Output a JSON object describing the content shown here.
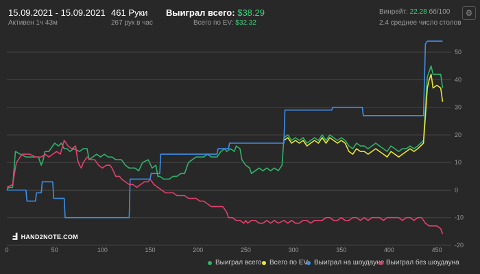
{
  "header": {
    "date_range": "15.09.2021 - 15.09.2021",
    "active": "Активен 1ч 43м",
    "hands": "461 Руки",
    "hands_per_hour": "267 рук в час",
    "won_label": "Выиграл всего:",
    "won_value": "$38.29",
    "ev_label": "Всего по EV:",
    "ev_value": "$32.32",
    "winrate_label": "Винрейт:",
    "winrate_value": "22.28",
    "winrate_unit": "бб/100",
    "avg_tables": "2.4 среднее число столов"
  },
  "settings_icon": "gear-icon",
  "logo": {
    "text": "HAND2NOTE.COM"
  },
  "colors": {
    "background": "#282828",
    "won": "#2fb36a",
    "ev": "#e9e63a",
    "showdown": "#3f8ee8",
    "non_showdown": "#e3406f",
    "grid": "#444444",
    "zero_line": "#5a5a5a",
    "accent_text": "#3bd47a"
  },
  "chart_data": {
    "type": "line",
    "xlim": [
      0,
      465
    ],
    "ylim": [
      -20,
      57
    ],
    "xticks": [
      "0",
      "50",
      "100",
      "150",
      "200",
      "250",
      "300",
      "350",
      "400",
      "450"
    ],
    "yticks": [
      "-20",
      "-10",
      "0",
      "10",
      "20",
      "30",
      "40",
      "50"
    ],
    "grid": true,
    "legend_position": "bottom-right",
    "series": [
      {
        "name": "Выиграл всего",
        "color": "#2fb36a",
        "points": [
          [
            0,
            0
          ],
          [
            2,
            1
          ],
          [
            6,
            1
          ],
          [
            9,
            14
          ],
          [
            14,
            13
          ],
          [
            20,
            12
          ],
          [
            26,
            12
          ],
          [
            33,
            12
          ],
          [
            36,
            9
          ],
          [
            38,
            11
          ],
          [
            40,
            14
          ],
          [
            44,
            14
          ],
          [
            46,
            15
          ],
          [
            48,
            16
          ],
          [
            50,
            17
          ],
          [
            54,
            16
          ],
          [
            57,
            17
          ],
          [
            60,
            15
          ],
          [
            63,
            15
          ],
          [
            66,
            14
          ],
          [
            70,
            15
          ],
          [
            76,
            14
          ],
          [
            80,
            15
          ],
          [
            84,
            15
          ],
          [
            86,
            11
          ],
          [
            90,
            12
          ],
          [
            94,
            13
          ],
          [
            98,
            12
          ],
          [
            102,
            13
          ],
          [
            106,
            12
          ],
          [
            110,
            12
          ],
          [
            114,
            11
          ],
          [
            120,
            11
          ],
          [
            124,
            9
          ],
          [
            128,
            8
          ],
          [
            130,
            8
          ],
          [
            134,
            8
          ],
          [
            138,
            7
          ],
          [
            142,
            10
          ],
          [
            148,
            11
          ],
          [
            152,
            8
          ],
          [
            156,
            9
          ],
          [
            158,
            5
          ],
          [
            160,
            5
          ],
          [
            164,
            4
          ],
          [
            170,
            4
          ],
          [
            174,
            5
          ],
          [
            178,
            5
          ],
          [
            182,
            6
          ],
          [
            186,
            6
          ],
          [
            188,
            8
          ],
          [
            190,
            10
          ],
          [
            194,
            11
          ],
          [
            198,
            12
          ],
          [
            202,
            12
          ],
          [
            206,
            12
          ],
          [
            210,
            13
          ],
          [
            214,
            12
          ],
          [
            220,
            12
          ],
          [
            224,
            14
          ],
          [
            228,
            15
          ],
          [
            230,
            14
          ],
          [
            234,
            15
          ],
          [
            238,
            14
          ],
          [
            240,
            16
          ],
          [
            244,
            15
          ],
          [
            246,
            11
          ],
          [
            248,
            10
          ],
          [
            250,
            9
          ],
          [
            254,
            8
          ],
          [
            256,
            6
          ],
          [
            260,
            7
          ],
          [
            264,
            8
          ],
          [
            268,
            7
          ],
          [
            272,
            8
          ],
          [
            276,
            7
          ],
          [
            280,
            8
          ],
          [
            284,
            7
          ],
          [
            288,
            9
          ],
          [
            290,
            19
          ],
          [
            294,
            20
          ],
          [
            298,
            18
          ],
          [
            302,
            19
          ],
          [
            306,
            18
          ],
          [
            310,
            19
          ],
          [
            314,
            17
          ],
          [
            318,
            18
          ],
          [
            322,
            19
          ],
          [
            326,
            18
          ],
          [
            330,
            20
          ],
          [
            334,
            18
          ],
          [
            338,
            20
          ],
          [
            342,
            19
          ],
          [
            346,
            18
          ],
          [
            350,
            19
          ],
          [
            354,
            18
          ],
          [
            358,
            16
          ],
          [
            362,
            15
          ],
          [
            366,
            17
          ],
          [
            370,
            16
          ],
          [
            374,
            16
          ],
          [
            378,
            15
          ],
          [
            382,
            16
          ],
          [
            386,
            17
          ],
          [
            390,
            16
          ],
          [
            394,
            15
          ],
          [
            398,
            14
          ],
          [
            402,
            16
          ],
          [
            406,
            15
          ],
          [
            410,
            14
          ],
          [
            414,
            15
          ],
          [
            418,
            15
          ],
          [
            422,
            16
          ],
          [
            426,
            15
          ],
          [
            430,
            16
          ],
          [
            436,
            18
          ],
          [
            440,
            41
          ],
          [
            442,
            43
          ],
          [
            444,
            45
          ],
          [
            446,
            42
          ],
          [
            450,
            42
          ],
          [
            454,
            42
          ],
          [
            456,
            37
          ]
        ]
      },
      {
        "name": "Всего по EV",
        "color": "#e9e63a",
        "points": [
          [
            290,
            18
          ],
          [
            294,
            19
          ],
          [
            298,
            17
          ],
          [
            302,
            18
          ],
          [
            306,
            17
          ],
          [
            310,
            18
          ],
          [
            314,
            16
          ],
          [
            318,
            17
          ],
          [
            322,
            18
          ],
          [
            326,
            17
          ],
          [
            330,
            19
          ],
          [
            334,
            17
          ],
          [
            338,
            19
          ],
          [
            342,
            18
          ],
          [
            346,
            17
          ],
          [
            350,
            18
          ],
          [
            354,
            17
          ],
          [
            358,
            14
          ],
          [
            362,
            13
          ],
          [
            366,
            15
          ],
          [
            370,
            14
          ],
          [
            374,
            14
          ],
          [
            378,
            13
          ],
          [
            382,
            14
          ],
          [
            386,
            15
          ],
          [
            390,
            14
          ],
          [
            394,
            13
          ],
          [
            398,
            12
          ],
          [
            402,
            14
          ],
          [
            406,
            13
          ],
          [
            410,
            12
          ],
          [
            414,
            13
          ],
          [
            418,
            14
          ],
          [
            422,
            15
          ],
          [
            426,
            14
          ],
          [
            430,
            15
          ],
          [
            436,
            17
          ],
          [
            440,
            37
          ],
          [
            442,
            40
          ],
          [
            444,
            42
          ],
          [
            446,
            37
          ],
          [
            450,
            38
          ],
          [
            454,
            37
          ],
          [
            456,
            32
          ]
        ]
      },
      {
        "name": "Выиграл на шоудауне",
        "color": "#3f8ee8",
        "points": [
          [
            0,
            0
          ],
          [
            20,
            0
          ],
          [
            21,
            -4
          ],
          [
            30,
            -4
          ],
          [
            31,
            -1
          ],
          [
            36,
            -1
          ],
          [
            37,
            3
          ],
          [
            48,
            3
          ],
          [
            49,
            -3
          ],
          [
            60,
            -3
          ],
          [
            61,
            -10
          ],
          [
            128,
            -10
          ],
          [
            129,
            4
          ],
          [
            150,
            4
          ],
          [
            151,
            6
          ],
          [
            160,
            6
          ],
          [
            161,
            13
          ],
          [
            220,
            13
          ],
          [
            221,
            15
          ],
          [
            232,
            15
          ],
          [
            233,
            17
          ],
          [
            290,
            17
          ],
          [
            291,
            29
          ],
          [
            300,
            29
          ],
          [
            301,
            29
          ],
          [
            340,
            29
          ],
          [
            341,
            30
          ],
          [
            372,
            30
          ],
          [
            373,
            27
          ],
          [
            436,
            27
          ],
          [
            438,
            53
          ],
          [
            440,
            54
          ],
          [
            456,
            54
          ]
        ]
      },
      {
        "name": "Выиграл без шоудауна",
        "color": "#e3406f",
        "points": [
          [
            0,
            1
          ],
          [
            6,
            2
          ],
          [
            10,
            10
          ],
          [
            16,
            13
          ],
          [
            24,
            13
          ],
          [
            30,
            12
          ],
          [
            36,
            12
          ],
          [
            40,
            13
          ],
          [
            44,
            12
          ],
          [
            48,
            13
          ],
          [
            52,
            14
          ],
          [
            56,
            13
          ],
          [
            60,
            18
          ],
          [
            62,
            17
          ],
          [
            64,
            16
          ],
          [
            68,
            15
          ],
          [
            72,
            16
          ],
          [
            74,
            11
          ],
          [
            76,
            9
          ],
          [
            78,
            8
          ],
          [
            80,
            10
          ],
          [
            84,
            12
          ],
          [
            88,
            11
          ],
          [
            92,
            11
          ],
          [
            96,
            9
          ],
          [
            100,
            8
          ],
          [
            104,
            9
          ],
          [
            108,
            9
          ],
          [
            110,
            8
          ],
          [
            114,
            5
          ],
          [
            118,
            5
          ],
          [
            120,
            4
          ],
          [
            124,
            3
          ],
          [
            128,
            2
          ],
          [
            132,
            2
          ],
          [
            136,
            1
          ],
          [
            140,
            2
          ],
          [
            144,
            3
          ],
          [
            148,
            3
          ],
          [
            150,
            4
          ],
          [
            154,
            2
          ],
          [
            158,
            1
          ],
          [
            162,
            0
          ],
          [
            166,
            -1
          ],
          [
            170,
            -1
          ],
          [
            174,
            -1
          ],
          [
            178,
            -2
          ],
          [
            182,
            -2
          ],
          [
            186,
            -2
          ],
          [
            190,
            -3
          ],
          [
            194,
            -3
          ],
          [
            198,
            -3
          ],
          [
            202,
            -4
          ],
          [
            206,
            -4
          ],
          [
            210,
            -5
          ],
          [
            214,
            -6
          ],
          [
            218,
            -6
          ],
          [
            222,
            -6
          ],
          [
            226,
            -6
          ],
          [
            230,
            -8
          ],
          [
            232,
            -10
          ],
          [
            236,
            -10
          ],
          [
            240,
            -11
          ],
          [
            244,
            -11
          ],
          [
            248,
            -12
          ],
          [
            250,
            -11
          ],
          [
            252,
            -12
          ],
          [
            256,
            -11
          ],
          [
            260,
            -11
          ],
          [
            264,
            -12
          ],
          [
            268,
            -12
          ],
          [
            272,
            -11
          ],
          [
            276,
            -12
          ],
          [
            280,
            -11
          ],
          [
            284,
            -12
          ],
          [
            290,
            -11
          ],
          [
            294,
            -12
          ],
          [
            298,
            -11
          ],
          [
            302,
            -12
          ],
          [
            306,
            -12
          ],
          [
            310,
            -11
          ],
          [
            314,
            -11
          ],
          [
            318,
            -12
          ],
          [
            322,
            -11
          ],
          [
            326,
            -11
          ],
          [
            330,
            -11
          ],
          [
            334,
            -10
          ],
          [
            338,
            -10
          ],
          [
            342,
            -11
          ],
          [
            346,
            -11
          ],
          [
            350,
            -10
          ],
          [
            354,
            -11
          ],
          [
            358,
            -11
          ],
          [
            362,
            -10
          ],
          [
            366,
            -10
          ],
          [
            370,
            -11
          ],
          [
            374,
            -10
          ],
          [
            378,
            -11
          ],
          [
            382,
            -10
          ],
          [
            386,
            -10
          ],
          [
            390,
            -10
          ],
          [
            394,
            -11
          ],
          [
            398,
            -10
          ],
          [
            402,
            -10
          ],
          [
            406,
            -10
          ],
          [
            410,
            -10
          ],
          [
            414,
            -11
          ],
          [
            418,
            -10
          ],
          [
            422,
            -10
          ],
          [
            426,
            -11
          ],
          [
            430,
            -10
          ],
          [
            434,
            -10
          ],
          [
            438,
            -12
          ],
          [
            442,
            -13
          ],
          [
            446,
            -13
          ],
          [
            450,
            -13
          ],
          [
            454,
            -14
          ],
          [
            456,
            -16
          ]
        ]
      }
    ]
  }
}
